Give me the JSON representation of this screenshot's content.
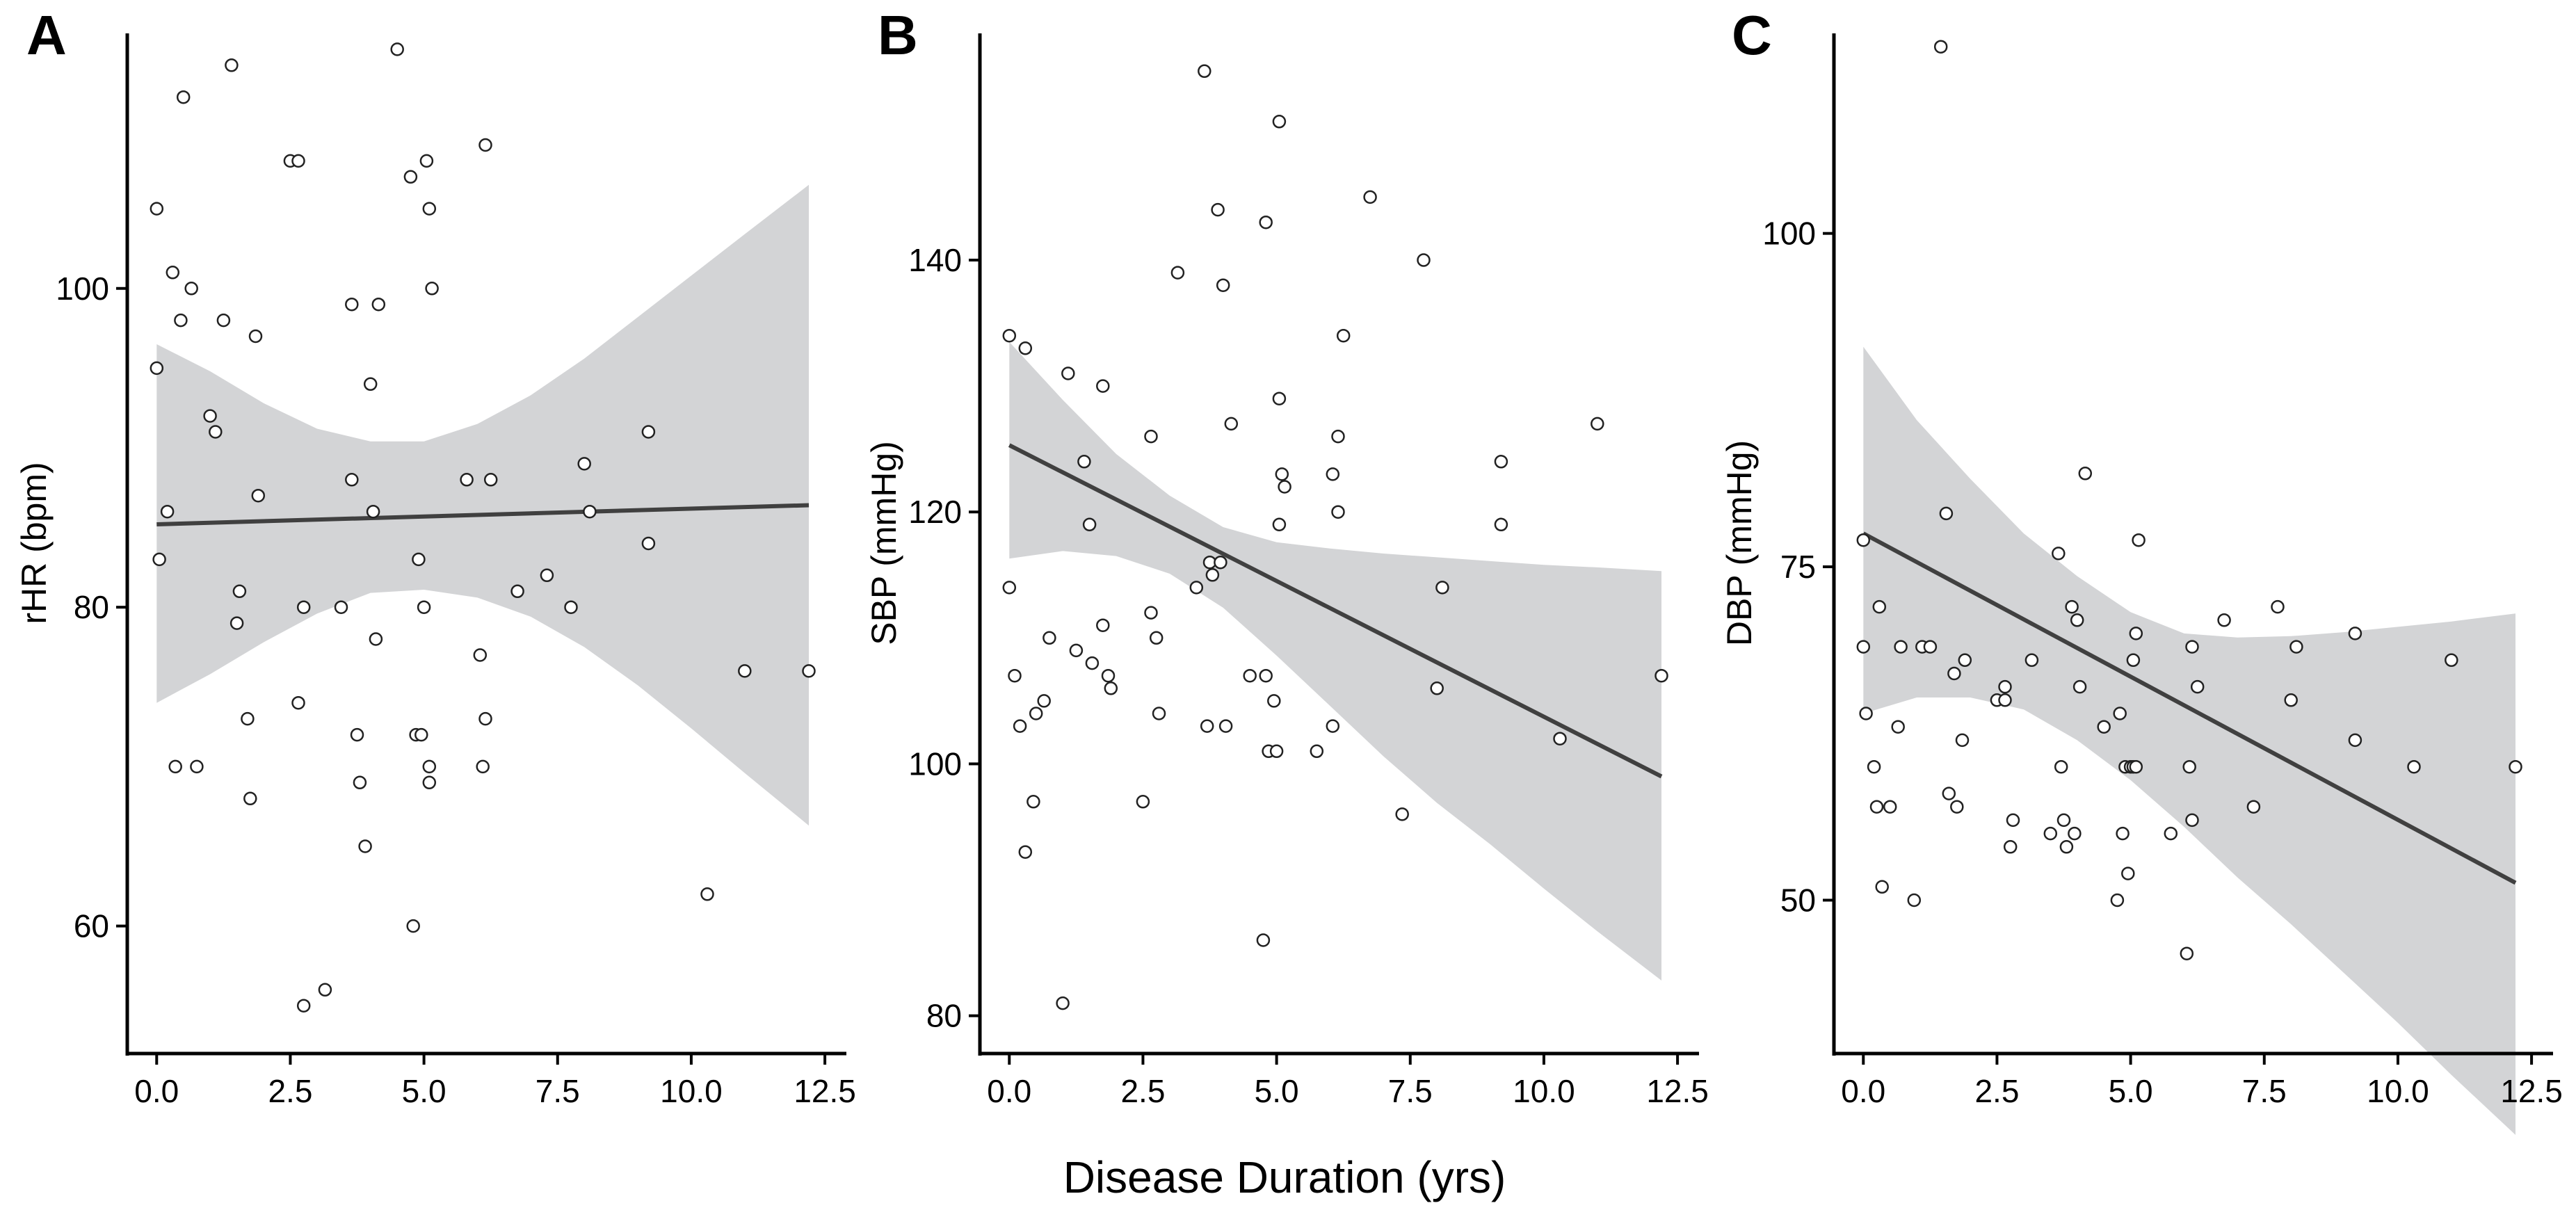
{
  "x_title": "Disease Duration (yrs)",
  "colors": {
    "band": "#d3d4d6",
    "fit_line": "#404040",
    "point_stroke": "#222222",
    "axis": "#000000"
  },
  "chart_data": [
    {
      "panel": "A",
      "type": "scatter",
      "ylabel": "rHR (bpm)",
      "xlim": [
        -0.55,
        12.85
      ],
      "ylim": [
        52,
        116
      ],
      "x_ticks": [
        0.0,
        2.5,
        5.0,
        7.5,
        10.0,
        12.5
      ],
      "x_tick_labels": [
        "0.0",
        "2.5",
        "5.0",
        "7.5",
        "10.0",
        "12.5"
      ],
      "y_ticks": [
        60,
        80,
        100
      ],
      "y_tick_labels": [
        "60",
        "80",
        "100"
      ],
      "fit": {
        "x": [
          0,
          12.2
        ],
        "y": [
          85.2,
          86.4
        ]
      },
      "band": {
        "x": [
          0,
          1,
          2,
          3,
          4,
          5,
          6,
          7,
          8,
          9,
          10,
          11,
          12.2
        ],
        "upper": [
          96.5,
          94.8,
          92.8,
          91.2,
          90.4,
          90.4,
          91.5,
          93.3,
          95.6,
          98.2,
          100.8,
          103.4,
          106.5
        ],
        "lower": [
          74.0,
          75.8,
          77.8,
          79.6,
          80.9,
          81.1,
          80.6,
          79.4,
          77.5,
          75.1,
          72.4,
          69.6,
          66.3
        ]
      },
      "points": [
        [
          0.0,
          95
        ],
        [
          0.0,
          105
        ],
        [
          0.05,
          83
        ],
        [
          0.2,
          86
        ],
        [
          0.3,
          101
        ],
        [
          0.35,
          70
        ],
        [
          0.45,
          98
        ],
        [
          0.5,
          112
        ],
        [
          0.65,
          100
        ],
        [
          0.75,
          70
        ],
        [
          1.0,
          92
        ],
        [
          1.1,
          91
        ],
        [
          1.25,
          98
        ],
        [
          1.4,
          114
        ],
        [
          1.5,
          79
        ],
        [
          1.55,
          81
        ],
        [
          1.7,
          73
        ],
        [
          1.75,
          68
        ],
        [
          1.85,
          97
        ],
        [
          1.9,
          87
        ],
        [
          2.5,
          108
        ],
        [
          2.65,
          108
        ],
        [
          2.65,
          74
        ],
        [
          2.75,
          55
        ],
        [
          2.75,
          80
        ],
        [
          3.15,
          56
        ],
        [
          3.45,
          80
        ],
        [
          3.65,
          99
        ],
        [
          3.65,
          88
        ],
        [
          3.75,
          72
        ],
        [
          3.8,
          69
        ],
        [
          3.9,
          65
        ],
        [
          4.0,
          94
        ],
        [
          4.05,
          86
        ],
        [
          4.1,
          78
        ],
        [
          4.15,
          99
        ],
        [
          4.5,
          115
        ],
        [
          4.75,
          107
        ],
        [
          4.8,
          60
        ],
        [
          4.85,
          72
        ],
        [
          4.9,
          83
        ],
        [
          4.95,
          72
        ],
        [
          5.0,
          80
        ],
        [
          5.05,
          108
        ],
        [
          5.1,
          105
        ],
        [
          5.1,
          70
        ],
        [
          5.1,
          69
        ],
        [
          5.15,
          100
        ],
        [
          5.8,
          88
        ],
        [
          6.05,
          77
        ],
        [
          6.1,
          70
        ],
        [
          6.15,
          109
        ],
        [
          6.15,
          73
        ],
        [
          6.25,
          88
        ],
        [
          6.75,
          81
        ],
        [
          7.3,
          82
        ],
        [
          7.75,
          80
        ],
        [
          8.0,
          89
        ],
        [
          8.1,
          86
        ],
        [
          9.2,
          91
        ],
        [
          9.2,
          84
        ],
        [
          10.3,
          62
        ],
        [
          11.0,
          76
        ],
        [
          12.2,
          76
        ]
      ]
    },
    {
      "panel": "B",
      "type": "scatter",
      "ylabel": "SBP (mmHg)",
      "xlim": [
        -0.55,
        12.85
      ],
      "ylim": [
        77,
        158
      ],
      "x_ticks": [
        0.0,
        2.5,
        5.0,
        7.5,
        10.0,
        12.5
      ],
      "x_tick_labels": [
        "0.0",
        "2.5",
        "5.0",
        "7.5",
        "10.0",
        "12.5"
      ],
      "y_ticks": [
        80,
        100,
        120,
        140
      ],
      "y_tick_labels": [
        "80",
        "100",
        "120",
        "140"
      ],
      "fit": {
        "x": [
          0,
          12.2
        ],
        "y": [
          125.3,
          99.0
        ]
      },
      "band": {
        "x": [
          0,
          1,
          2,
          3,
          4,
          5,
          6,
          7,
          8,
          9,
          10,
          11,
          12.2
        ],
        "upper": [
          133.5,
          128.9,
          124.6,
          121.3,
          118.8,
          117.6,
          117.1,
          116.7,
          116.4,
          116.1,
          115.8,
          115.6,
          115.3
        ],
        "lower": [
          116.3,
          116.9,
          116.5,
          115.1,
          112.4,
          108.6,
          104.6,
          100.6,
          96.9,
          93.6,
          90.1,
          86.7,
          82.8
        ]
      },
      "points": [
        [
          0.0,
          134
        ],
        [
          0.0,
          114
        ],
        [
          0.1,
          107
        ],
        [
          0.2,
          103
        ],
        [
          0.3,
          133
        ],
        [
          0.3,
          93
        ],
        [
          0.45,
          97
        ],
        [
          0.5,
          104
        ],
        [
          0.65,
          105
        ],
        [
          0.75,
          110
        ],
        [
          1.0,
          81
        ],
        [
          1.1,
          131
        ],
        [
          1.25,
          109
        ],
        [
          1.4,
          124
        ],
        [
          1.5,
          119
        ],
        [
          1.55,
          108
        ],
        [
          1.75,
          111
        ],
        [
          1.75,
          130
        ],
        [
          1.85,
          107
        ],
        [
          1.9,
          106
        ],
        [
          2.5,
          97
        ],
        [
          2.65,
          126
        ],
        [
          2.65,
          112
        ],
        [
          2.75,
          110
        ],
        [
          2.8,
          104
        ],
        [
          3.15,
          139
        ],
        [
          3.5,
          114
        ],
        [
          3.65,
          155
        ],
        [
          3.7,
          103
        ],
        [
          3.75,
          116
        ],
        [
          3.8,
          115
        ],
        [
          3.9,
          144
        ],
        [
          3.95,
          116
        ],
        [
          4.0,
          138
        ],
        [
          4.05,
          103
        ],
        [
          4.15,
          127
        ],
        [
          4.5,
          107
        ],
        [
          4.75,
          86
        ],
        [
          4.8,
          107
        ],
        [
          4.8,
          143
        ],
        [
          4.85,
          101
        ],
        [
          4.95,
          105
        ],
        [
          5.0,
          101
        ],
        [
          5.05,
          151
        ],
        [
          5.05,
          129
        ],
        [
          5.05,
          119
        ],
        [
          5.1,
          123
        ],
        [
          5.15,
          122
        ],
        [
          5.75,
          101
        ],
        [
          6.05,
          103
        ],
        [
          6.05,
          123
        ],
        [
          6.15,
          126
        ],
        [
          6.15,
          120
        ],
        [
          6.25,
          134
        ],
        [
          6.75,
          145
        ],
        [
          7.35,
          96
        ],
        [
          7.75,
          140
        ],
        [
          8.0,
          106
        ],
        [
          8.1,
          114
        ],
        [
          9.2,
          124
        ],
        [
          9.2,
          119
        ],
        [
          10.3,
          102
        ],
        [
          11.0,
          127
        ],
        [
          12.2,
          107
        ]
      ]
    },
    {
      "panel": "C",
      "type": "scatter",
      "ylabel": "DBP (mmHg)",
      "xlim": [
        -0.55,
        12.85
      ],
      "ylim": [
        38.5,
        115
      ],
      "x_ticks": [
        0.0,
        2.5,
        5.0,
        7.5,
        10.0,
        12.5
      ],
      "x_tick_labels": [
        "0.0",
        "2.5",
        "5.0",
        "7.5",
        "10.0",
        "12.5"
      ],
      "y_ticks": [
        50,
        75,
        100
      ],
      "y_tick_labels": [
        "50",
        "75",
        "100"
      ],
      "fit": {
        "x": [
          0,
          12.2
        ],
        "y": [
          77.5,
          51.3
        ]
      },
      "band": {
        "x": [
          0,
          1,
          2,
          3,
          4,
          5,
          6,
          7,
          8,
          9,
          10,
          11,
          12.2
        ],
        "upper": [
          91.5,
          86.0,
          81.6,
          77.5,
          74.3,
          71.6,
          70.0,
          69.7,
          69.8,
          70.1,
          70.5,
          70.9,
          71.5
        ],
        "lower": [
          64.0,
          65.2,
          65.2,
          64.3,
          62.0,
          59.0,
          55.5,
          51.7,
          48.2,
          44.5,
          40.8,
          36.9,
          32.4
        ]
      },
      "points": [
        [
          0.0,
          77
        ],
        [
          0.0,
          69
        ],
        [
          0.05,
          64
        ],
        [
          0.2,
          60
        ],
        [
          0.25,
          57
        ],
        [
          0.3,
          72
        ],
        [
          0.35,
          51
        ],
        [
          0.5,
          57
        ],
        [
          0.65,
          63
        ],
        [
          0.7,
          69
        ],
        [
          0.95,
          50
        ],
        [
          1.1,
          69
        ],
        [
          1.25,
          69
        ],
        [
          1.45,
          114
        ],
        [
          1.55,
          79
        ],
        [
          1.6,
          58
        ],
        [
          1.7,
          67
        ],
        [
          1.75,
          57
        ],
        [
          1.85,
          62
        ],
        [
          1.9,
          68
        ],
        [
          2.5,
          65
        ],
        [
          2.65,
          66
        ],
        [
          2.65,
          65
        ],
        [
          2.75,
          54
        ],
        [
          2.8,
          56
        ],
        [
          3.15,
          68
        ],
        [
          3.5,
          55
        ],
        [
          3.65,
          76
        ],
        [
          3.7,
          60
        ],
        [
          3.75,
          56
        ],
        [
          3.8,
          54
        ],
        [
          3.9,
          72
        ],
        [
          3.95,
          55
        ],
        [
          4.0,
          71
        ],
        [
          4.05,
          66
        ],
        [
          4.15,
          82
        ],
        [
          4.5,
          63
        ],
        [
          4.75,
          50
        ],
        [
          4.8,
          64
        ],
        [
          4.85,
          55
        ],
        [
          4.9,
          60
        ],
        [
          4.95,
          52
        ],
        [
          5.0,
          60
        ],
        [
          5.05,
          60
        ],
        [
          5.05,
          68
        ],
        [
          5.1,
          70
        ],
        [
          5.1,
          60
        ],
        [
          5.15,
          77
        ],
        [
          5.75,
          55
        ],
        [
          6.05,
          46
        ],
        [
          6.1,
          60
        ],
        [
          6.15,
          69
        ],
        [
          6.15,
          56
        ],
        [
          6.25,
          66
        ],
        [
          6.75,
          71
        ],
        [
          7.3,
          57
        ],
        [
          7.75,
          72
        ],
        [
          8.0,
          65
        ],
        [
          8.1,
          69
        ],
        [
          9.2,
          70
        ],
        [
          9.2,
          62
        ],
        [
          10.3,
          60
        ],
        [
          11.0,
          68
        ],
        [
          12.2,
          60
        ]
      ]
    }
  ]
}
